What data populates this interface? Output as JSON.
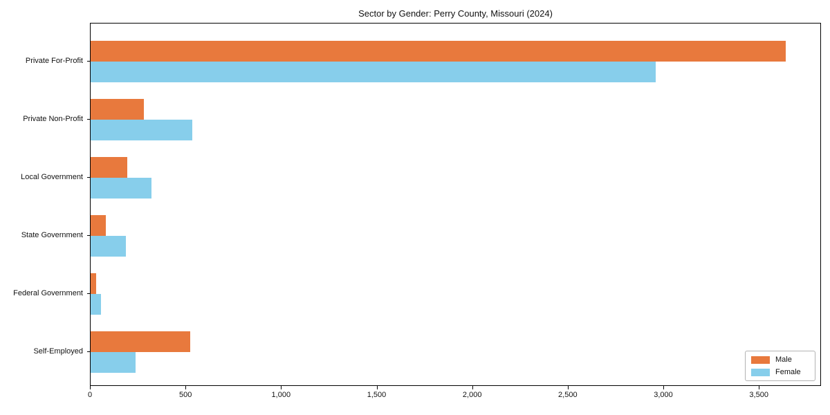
{
  "chart_data": {
    "type": "bar",
    "orientation": "horizontal",
    "title": "Sector by Gender: Perry County, Missouri (2024)",
    "categories": [
      "Private For-Profit",
      "Private Non-Profit",
      "Local Government",
      "State Government",
      "Federal Government",
      "Self-Employed"
    ],
    "series": [
      {
        "name": "Male",
        "color": "#e8793d",
        "values": [
          3635,
          280,
          190,
          80,
          30,
          520
        ]
      },
      {
        "name": "Female",
        "color": "#87ceeb",
        "values": [
          2955,
          530,
          320,
          185,
          55,
          235
        ]
      }
    ],
    "xlabel": "",
    "ylabel": "",
    "xlim": [
      0,
      3825
    ],
    "xticks": [
      0,
      500,
      1000,
      1500,
      2000,
      2500,
      3000,
      3500
    ],
    "xtick_labels": [
      "0",
      "500",
      "1,000",
      "1,500",
      "2,000",
      "2,500",
      "3,000",
      "3,500"
    ],
    "grid": false,
    "legend_position": "lower right",
    "background_color": "#ffffff",
    "spine_color": "#000000"
  }
}
